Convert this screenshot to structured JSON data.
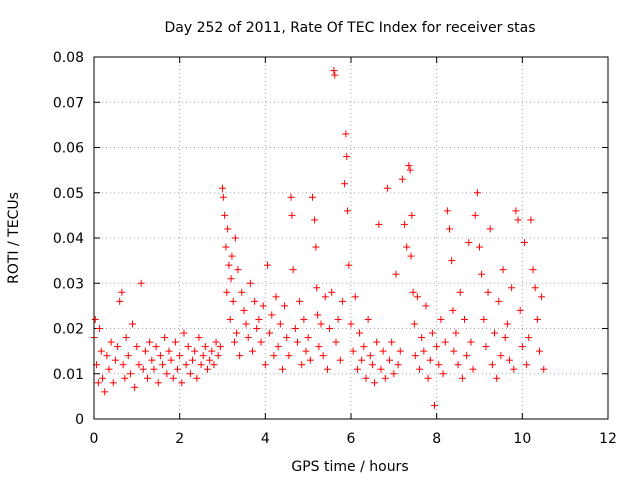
{
  "chart_data": {
    "type": "scatter",
    "title": "Day 252 of 2011, Rate Of TEC Index for receiver stas",
    "xlabel": "GPS time / hours",
    "ylabel": "ROTI / TECUs",
    "xlim": [
      0,
      12
    ],
    "ylim": [
      0,
      0.08
    ],
    "xticks": [
      0,
      2,
      4,
      6,
      8,
      10,
      12
    ],
    "xtick_labels": [
      "0",
      "2",
      "4",
      "6",
      "8",
      "10",
      "12"
    ],
    "yticks": [
      0,
      0.01,
      0.02,
      0.03,
      0.04,
      0.05,
      0.06,
      0.07,
      0.08
    ],
    "ytick_labels": [
      "0",
      "0.01",
      "0.02",
      "0.03",
      "0.04",
      "0.05",
      "0.06",
      "0.07",
      "0.08"
    ],
    "grid": true,
    "marker": "+",
    "color": "#ff0000",
    "series": [
      {
        "x": [
          0.0,
          0.03,
          0.06,
          0.1,
          0.13,
          0.17,
          0.2,
          0.25,
          0.3,
          0.35,
          0.4,
          0.45,
          0.5,
          0.55,
          0.6,
          0.65,
          0.68,
          0.72,
          0.75,
          0.8,
          0.85,
          0.9,
          0.95,
          1.0,
          1.05,
          1.1,
          1.15,
          1.2,
          1.25,
          1.3,
          1.35,
          1.4,
          1.45,
          1.5,
          1.55,
          1.6,
          1.65,
          1.7,
          1.75,
          1.8,
          1.85,
          1.9,
          1.95,
          2.0,
          2.05,
          2.1,
          2.15,
          2.2,
          2.25,
          2.3,
          2.35,
          2.4,
          2.45,
          2.5,
          2.55,
          2.6,
          2.65,
          2.7,
          2.75,
          2.8,
          2.85,
          2.9,
          2.95,
          3.0,
          3.02,
          3.05,
          3.08,
          3.1,
          3.12,
          3.15,
          3.18,
          3.2,
          3.22,
          3.25,
          3.28,
          3.3,
          3.33,
          3.36,
          3.4,
          3.45,
          3.5,
          3.55,
          3.6,
          3.65,
          3.7,
          3.75,
          3.8,
          3.85,
          3.9,
          3.95,
          4.0,
          4.05,
          4.1,
          4.15,
          4.2,
          4.25,
          4.3,
          4.35,
          4.4,
          4.45,
          4.5,
          4.55,
          4.6,
          4.62,
          4.65,
          4.7,
          4.75,
          4.8,
          4.85,
          4.9,
          4.95,
          5.0,
          5.05,
          5.1,
          5.15,
          5.18,
          5.2,
          5.22,
          5.25,
          5.3,
          5.35,
          5.4,
          5.45,
          5.5,
          5.55,
          5.6,
          5.62,
          5.65,
          5.7,
          5.75,
          5.8,
          5.85,
          5.88,
          5.9,
          5.92,
          5.95,
          6.0,
          6.05,
          6.1,
          6.15,
          6.2,
          6.25,
          6.3,
          6.35,
          6.4,
          6.45,
          6.5,
          6.55,
          6.6,
          6.65,
          6.7,
          6.75,
          6.8,
          6.85,
          6.9,
          6.95,
          7.0,
          7.05,
          7.1,
          7.15,
          7.2,
          7.25,
          7.3,
          7.35,
          7.38,
          7.4,
          7.42,
          7.45,
          7.48,
          7.5,
          7.55,
          7.6,
          7.65,
          7.7,
          7.75,
          7.8,
          7.85,
          7.9,
          7.95,
          8.0,
          8.05,
          8.1,
          8.15,
          8.2,
          8.25,
          8.3,
          8.35,
          8.38,
          8.4,
          8.45,
          8.5,
          8.55,
          8.6,
          8.65,
          8.7,
          8.75,
          8.8,
          8.85,
          8.9,
          8.95,
          9.0,
          9.05,
          9.1,
          9.15,
          9.2,
          9.25,
          9.3,
          9.35,
          9.4,
          9.45,
          9.5,
          9.55,
          9.6,
          9.65,
          9.7,
          9.75,
          9.8,
          9.85,
          9.9,
          9.95,
          10.0,
          10.05,
          10.1,
          10.15,
          10.2,
          10.25,
          10.3,
          10.35,
          10.4,
          10.45,
          10.5
        ],
        "y": [
          0.018,
          0.022,
          0.012,
          0.008,
          0.02,
          0.015,
          0.009,
          0.006,
          0.014,
          0.011,
          0.017,
          0.008,
          0.013,
          0.016,
          0.026,
          0.028,
          0.012,
          0.009,
          0.018,
          0.014,
          0.01,
          0.021,
          0.007,
          0.016,
          0.012,
          0.03,
          0.011,
          0.015,
          0.009,
          0.017,
          0.013,
          0.011,
          0.016,
          0.008,
          0.014,
          0.012,
          0.018,
          0.01,
          0.015,
          0.013,
          0.009,
          0.017,
          0.011,
          0.014,
          0.008,
          0.019,
          0.012,
          0.016,
          0.01,
          0.013,
          0.015,
          0.009,
          0.018,
          0.012,
          0.014,
          0.016,
          0.011,
          0.013,
          0.015,
          0.012,
          0.017,
          0.014,
          0.016,
          0.051,
          0.049,
          0.045,
          0.038,
          0.028,
          0.042,
          0.034,
          0.022,
          0.031,
          0.036,
          0.026,
          0.017,
          0.04,
          0.019,
          0.033,
          0.014,
          0.028,
          0.024,
          0.021,
          0.018,
          0.03,
          0.015,
          0.026,
          0.02,
          0.022,
          0.017,
          0.025,
          0.012,
          0.034,
          0.019,
          0.023,
          0.014,
          0.027,
          0.016,
          0.021,
          0.011,
          0.025,
          0.018,
          0.014,
          0.049,
          0.045,
          0.033,
          0.02,
          0.017,
          0.026,
          0.012,
          0.022,
          0.015,
          0.018,
          0.013,
          0.049,
          0.044,
          0.038,
          0.029,
          0.023,
          0.016,
          0.021,
          0.014,
          0.027,
          0.011,
          0.02,
          0.028,
          0.077,
          0.076,
          0.017,
          0.022,
          0.013,
          0.026,
          0.052,
          0.063,
          0.058,
          0.046,
          0.034,
          0.021,
          0.015,
          0.027,
          0.011,
          0.019,
          0.013,
          0.016,
          0.009,
          0.022,
          0.014,
          0.012,
          0.008,
          0.017,
          0.043,
          0.011,
          0.015,
          0.009,
          0.051,
          0.013,
          0.017,
          0.01,
          0.032,
          0.012,
          0.015,
          0.053,
          0.043,
          0.038,
          0.056,
          0.055,
          0.036,
          0.045,
          0.028,
          0.021,
          0.014,
          0.027,
          0.011,
          0.018,
          0.015,
          0.025,
          0.009,
          0.013,
          0.019,
          0.003,
          0.016,
          0.012,
          0.022,
          0.01,
          0.017,
          0.046,
          0.042,
          0.035,
          0.024,
          0.015,
          0.019,
          0.012,
          0.028,
          0.009,
          0.022,
          0.014,
          0.039,
          0.017,
          0.011,
          0.045,
          0.05,
          0.038,
          0.032,
          0.022,
          0.016,
          0.028,
          0.042,
          0.012,
          0.019,
          0.009,
          0.026,
          0.014,
          0.033,
          0.018,
          0.021,
          0.013,
          0.029,
          0.011,
          0.046,
          0.044,
          0.024,
          0.016,
          0.039,
          0.012,
          0.018,
          0.044,
          0.033,
          0.029,
          0.022,
          0.015,
          0.027,
          0.011
        ]
      }
    ]
  }
}
